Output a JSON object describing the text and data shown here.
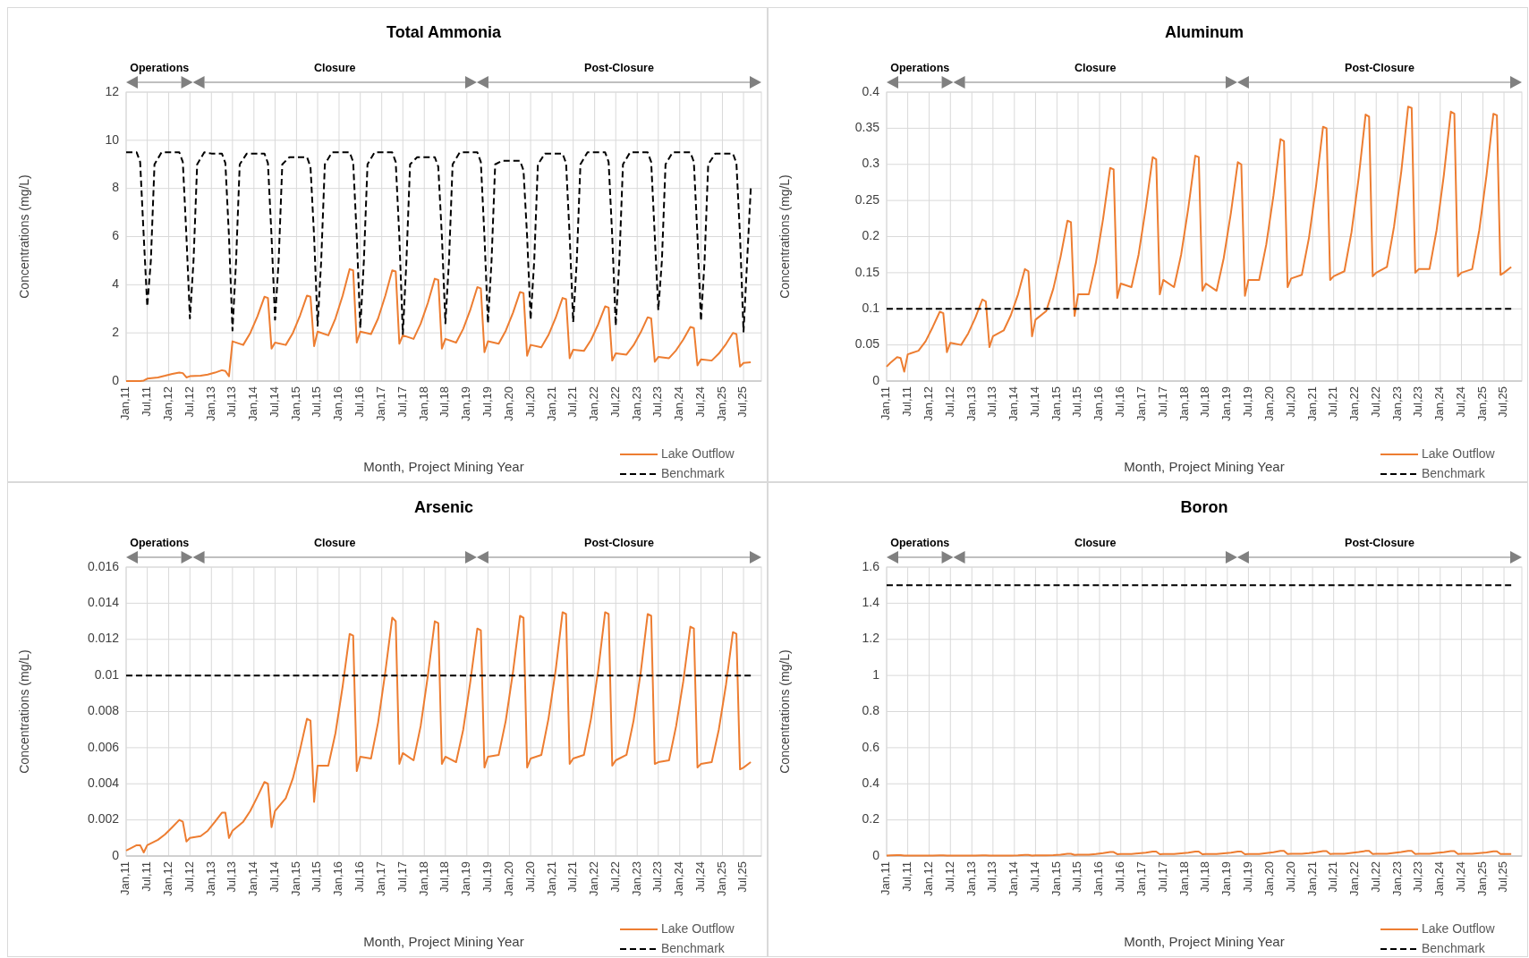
{
  "chart_data": [
    {
      "type": "line",
      "title": "Total Ammonia",
      "xlabel": "Month, Project Mining Year",
      "ylabel": "Concentrations (mg/L)",
      "grid": true,
      "legend": "bottom right",
      "xlim": [
        "2011-01",
        "2025-12"
      ],
      "ylim": [
        0,
        12
      ],
      "yticks": [
        0,
        2,
        4,
        6,
        8,
        10,
        12
      ],
      "xticks": [
        {
          "value": "2011-01",
          "label": "Jan,11"
        },
        {
          "value": "2011-07",
          "label": "Jul,11"
        },
        {
          "value": "2012-01",
          "label": "Jan,12"
        },
        {
          "value": "2012-07",
          "label": "Jul,12"
        },
        {
          "value": "2013-01",
          "label": "Jan,13"
        },
        {
          "value": "2013-07",
          "label": "Jul,13"
        },
        {
          "value": "2014-01",
          "label": "Jan,14"
        },
        {
          "value": "2014-07",
          "label": "Jul,14"
        },
        {
          "value": "2015-01",
          "label": "Jan,15"
        },
        {
          "value": "2015-07",
          "label": "Jul,15"
        },
        {
          "value": "2016-01",
          "label": "Jan,16"
        },
        {
          "value": "2016-07",
          "label": "Jul,16"
        },
        {
          "value": "2017-01",
          "label": "Jan,17"
        },
        {
          "value": "2017-07",
          "label": "Jul,17"
        },
        {
          "value": "2018-01",
          "label": "Jan,18"
        },
        {
          "value": "2018-07",
          "label": "Jul,18"
        },
        {
          "value": "2019-01",
          "label": "Jan,19"
        },
        {
          "value": "2019-07",
          "label": "Jul,19"
        },
        {
          "value": "2020-01",
          "label": "Jan,20"
        },
        {
          "value": "2020-07",
          "label": "Jul,20"
        },
        {
          "value": "2021-01",
          "label": "Jan,21"
        },
        {
          "value": "2021-07",
          "label": "Jul,21"
        },
        {
          "value": "2022-01",
          "label": "Jan,22"
        },
        {
          "value": "2022-07",
          "label": "Jul,22"
        },
        {
          "value": "2023-01",
          "label": "Jan,23"
        },
        {
          "value": "2023-07",
          "label": "Jul,23"
        },
        {
          "value": "2024-01",
          "label": "Jan,24"
        },
        {
          "value": "2024-07",
          "label": "Jul,24"
        },
        {
          "value": "2025-01",
          "label": "Jan,25"
        },
        {
          "value": "2025-07",
          "label": "Jul,25"
        }
      ],
      "annotations": [
        "Operations",
        "Closure",
        "Post-Closure"
      ],
      "x": [
        "2011-01",
        "2011-02",
        "2011-04",
        "2011-05",
        "2011-06",
        "2011-07",
        "2011-10",
        "2011-12",
        "2012-02",
        "2012-04",
        "2012-05",
        "2012-06",
        "2012-07",
        "2012-10",
        "2012-12",
        "2013-02",
        "2013-04",
        "2013-05",
        "2013-06",
        "2013-07",
        "2013-10",
        "2013-12",
        "2014-02",
        "2014-04",
        "2014-05",
        "2014-06",
        "2014-07",
        "2014-10",
        "2014-12",
        "2015-02",
        "2015-04",
        "2015-05",
        "2015-06",
        "2015-07",
        "2015-10",
        "2015-12",
        "2016-02",
        "2016-04",
        "2016-05",
        "2016-06",
        "2016-07",
        "2016-10",
        "2016-12",
        "2017-02",
        "2017-04",
        "2017-05",
        "2017-06",
        "2017-07",
        "2017-10",
        "2017-12",
        "2018-02",
        "2018-04",
        "2018-05",
        "2018-06",
        "2018-07",
        "2018-10",
        "2018-12",
        "2019-02",
        "2019-04",
        "2019-05",
        "2019-06",
        "2019-07",
        "2019-10",
        "2019-12",
        "2020-02",
        "2020-04",
        "2020-05",
        "2020-06",
        "2020-07",
        "2020-10",
        "2020-12",
        "2021-02",
        "2021-04",
        "2021-05",
        "2021-06",
        "2021-07",
        "2021-10",
        "2021-12",
        "2022-02",
        "2022-04",
        "2022-05",
        "2022-06",
        "2022-07",
        "2022-10",
        "2022-12",
        "2023-02",
        "2023-04",
        "2023-05",
        "2023-06",
        "2023-07",
        "2023-10",
        "2023-12",
        "2024-02",
        "2024-04",
        "2024-05",
        "2024-06",
        "2024-07",
        "2024-10",
        "2024-12",
        "2025-02",
        "2025-04",
        "2025-05",
        "2025-06",
        "2025-07",
        "2025-09"
      ],
      "series": [
        {
          "name": "Lake Outflow",
          "color": "#ed7d31",
          "line_style": "solid",
          "values": [
            0,
            0,
            0,
            0,
            0.02,
            0.1,
            0.15,
            0.22,
            0.3,
            0.35,
            0.33,
            0.15,
            0.2,
            0.22,
            0.27,
            0.35,
            0.45,
            0.42,
            0.2,
            1.65,
            1.5,
            2.0,
            2.7,
            3.5,
            3.45,
            1.35,
            1.6,
            1.5,
            2.0,
            2.73,
            3.55,
            3.5,
            1.45,
            2.05,
            1.9,
            2.6,
            3.55,
            4.65,
            4.6,
            1.6,
            2.05,
            1.95,
            2.6,
            3.55,
            4.6,
            4.55,
            1.55,
            1.9,
            1.75,
            2.38,
            3.25,
            4.25,
            4.2,
            1.35,
            1.75,
            1.6,
            2.17,
            2.98,
            3.9,
            3.85,
            1.2,
            1.65,
            1.55,
            2.09,
            2.84,
            3.7,
            3.65,
            1.05,
            1.5,
            1.4,
            1.91,
            2.63,
            3.45,
            3.4,
            0.95,
            1.3,
            1.25,
            1.71,
            2.36,
            3.1,
            3.05,
            0.85,
            1.15,
            1.1,
            1.49,
            2.03,
            2.65,
            2.6,
            0.8,
            1.0,
            0.95,
            1.28,
            1.73,
            2.25,
            2.2,
            0.65,
            0.9,
            0.85,
            1.14,
            1.54,
            2.0,
            1.95,
            0.6,
            0.75,
            0.78
          ]
        },
        {
          "name": "Benchmark",
          "color": "#000000",
          "line_style": "dashed",
          "x": [
            "2011-01",
            "2011-04",
            "2011-05",
            "2011-06",
            "2011-07",
            "2011-08",
            "2011-09",
            "2011-11",
            "2012-01",
            "2012-04",
            "2012-05",
            "2012-06",
            "2012-07",
            "2012-08",
            "2012-09",
            "2012-11",
            "2013-01",
            "2013-04",
            "2013-05",
            "2013-06",
            "2013-07",
            "2013-08",
            "2013-09",
            "2013-11",
            "2014-01",
            "2014-04",
            "2014-05",
            "2014-06",
            "2014-07",
            "2014-08",
            "2014-09",
            "2014-11",
            "2015-01",
            "2015-04",
            "2015-05",
            "2015-06",
            "2015-07",
            "2015-08",
            "2015-09",
            "2015-11",
            "2016-01",
            "2016-04",
            "2016-05",
            "2016-06",
            "2016-07",
            "2016-08",
            "2016-09",
            "2016-11",
            "2017-01",
            "2017-04",
            "2017-05",
            "2017-06",
            "2017-07",
            "2017-08",
            "2017-09",
            "2017-11",
            "2018-01",
            "2018-04",
            "2018-05",
            "2018-06",
            "2018-07",
            "2018-08",
            "2018-09",
            "2018-11",
            "2019-01",
            "2019-04",
            "2019-05",
            "2019-06",
            "2019-07",
            "2019-08",
            "2019-09",
            "2019-11",
            "2020-01",
            "2020-04",
            "2020-05",
            "2020-06",
            "2020-07",
            "2020-08",
            "2020-09",
            "2020-11",
            "2021-01",
            "2021-04",
            "2021-05",
            "2021-06",
            "2021-07",
            "2021-08",
            "2021-09",
            "2021-11",
            "2022-01",
            "2022-04",
            "2022-05",
            "2022-06",
            "2022-07",
            "2022-08",
            "2022-09",
            "2022-11",
            "2023-01",
            "2023-04",
            "2023-05",
            "2023-06",
            "2023-07",
            "2023-08",
            "2023-09",
            "2023-11",
            "2024-01",
            "2024-04",
            "2024-05",
            "2024-06",
            "2024-07",
            "2024-08",
            "2024-09",
            "2024-11",
            "2025-01",
            "2025-04",
            "2025-05",
            "2025-06",
            "2025-07",
            "2025-08",
            "2025-09"
          ],
          "values": [
            9.5,
            9.5,
            9.1,
            6,
            3.1,
            5,
            9,
            9.5,
            9.5,
            9.5,
            9.1,
            6,
            2.6,
            5,
            9,
            9.5,
            9.45,
            9.45,
            9.05,
            6,
            2.1,
            5,
            9,
            9.45,
            9.45,
            9.45,
            9.05,
            6,
            2.55,
            5,
            9,
            9.3,
            9.3,
            9.3,
            8.9,
            6,
            2.3,
            5,
            9,
            9.5,
            9.5,
            9.5,
            9.1,
            6,
            2.2,
            5,
            9,
            9.5,
            9.5,
            9.5,
            9.1,
            6,
            1.95,
            5,
            9,
            9.3,
            9.3,
            9.3,
            8.9,
            6,
            2.4,
            5,
            9,
            9.5,
            9.5,
            9.5,
            9.1,
            6,
            2.4,
            5,
            9,
            9.15,
            9.15,
            9.15,
            8.75,
            6,
            2.55,
            5,
            9,
            9.45,
            9.45,
            9.45,
            9.05,
            6,
            2.45,
            5,
            9,
            9.5,
            9.5,
            9.5,
            9.1,
            6,
            2.3,
            5,
            9,
            9.5,
            9.5,
            9.5,
            9.1,
            6,
            2.95,
            5,
            9,
            9.5,
            9.5,
            9.5,
            9.1,
            6,
            2.5,
            5,
            9,
            9.45,
            9.45,
            9.45,
            9.05,
            6,
            2.05,
            5,
            8
          ]
        }
      ]
    },
    {
      "type": "line",
      "title": "Aluminum",
      "xlabel": "Month, Project Mining Year",
      "ylabel": "Concentrations (mg/L)",
      "grid": true,
      "legend": "bottom right",
      "xlim": [
        "2011-01",
        "2025-12"
      ],
      "ylim": [
        0,
        0.4
      ],
      "yticks": [
        0,
        0.05,
        0.1,
        0.15,
        0.2,
        0.25,
        0.3,
        0.35,
        0.4
      ],
      "xticks": [
        {
          "value": "2011-01",
          "label": "Jan,11"
        },
        {
          "value": "2011-07",
          "label": "Jul,11"
        },
        {
          "value": "2012-01",
          "label": "Jan,12"
        },
        {
          "value": "2012-07",
          "label": "Jul,12"
        },
        {
          "value": "2013-01",
          "label": "Jan,13"
        },
        {
          "value": "2013-07",
          "label": "Jul,13"
        },
        {
          "value": "2014-01",
          "label": "Jan,14"
        },
        {
          "value": "2014-07",
          "label": "Jul,14"
        },
        {
          "value": "2015-01",
          "label": "Jan,15"
        },
        {
          "value": "2015-07",
          "label": "Jul,15"
        },
        {
          "value": "2016-01",
          "label": "Jan,16"
        },
        {
          "value": "2016-07",
          "label": "Jul,16"
        },
        {
          "value": "2017-01",
          "label": "Jan,17"
        },
        {
          "value": "2017-07",
          "label": "Jul,17"
        },
        {
          "value": "2018-01",
          "label": "Jan,18"
        },
        {
          "value": "2018-07",
          "label": "Jul,18"
        },
        {
          "value": "2019-01",
          "label": "Jan,19"
        },
        {
          "value": "2019-07",
          "label": "Jul,19"
        },
        {
          "value": "2020-01",
          "label": "Jan,20"
        },
        {
          "value": "2020-07",
          "label": "Jul,20"
        },
        {
          "value": "2021-01",
          "label": "Jan,21"
        },
        {
          "value": "2021-07",
          "label": "Jul,21"
        },
        {
          "value": "2022-01",
          "label": "Jan,22"
        },
        {
          "value": "2022-07",
          "label": "Jul,22"
        },
        {
          "value": "2023-01",
          "label": "Jan,23"
        },
        {
          "value": "2023-07",
          "label": "Jul,23"
        },
        {
          "value": "2024-01",
          "label": "Jan,24"
        },
        {
          "value": "2024-07",
          "label": "Jul,24"
        },
        {
          "value": "2025-01",
          "label": "Jan,25"
        },
        {
          "value": "2025-07",
          "label": "Jul,25"
        }
      ],
      "annotations": [
        "Operations",
        "Closure",
        "Post-Closure"
      ],
      "x": [
        "2011-01",
        "2011-02",
        "2011-04",
        "2011-05",
        "2011-06",
        "2011-07",
        "2011-10",
        "2011-12",
        "2012-02",
        "2012-04",
        "2012-05",
        "2012-06",
        "2012-07",
        "2012-10",
        "2012-12",
        "2013-02",
        "2013-04",
        "2013-05",
        "2013-06",
        "2013-07",
        "2013-10",
        "2013-12",
        "2014-02",
        "2014-04",
        "2014-05",
        "2014-06",
        "2014-07",
        "2014-10",
        "2014-12",
        "2015-02",
        "2015-04",
        "2015-05",
        "2015-06",
        "2015-07",
        "2015-10",
        "2015-12",
        "2016-02",
        "2016-04",
        "2016-05",
        "2016-06",
        "2016-07",
        "2016-10",
        "2016-12",
        "2017-02",
        "2017-04",
        "2017-05",
        "2017-06",
        "2017-07",
        "2017-10",
        "2017-12",
        "2018-02",
        "2018-04",
        "2018-05",
        "2018-06",
        "2018-07",
        "2018-10",
        "2018-12",
        "2019-02",
        "2019-04",
        "2019-05",
        "2019-06",
        "2019-07",
        "2019-10",
        "2019-12",
        "2020-02",
        "2020-04",
        "2020-05",
        "2020-06",
        "2020-07",
        "2020-10",
        "2020-12",
        "2021-02",
        "2021-04",
        "2021-05",
        "2021-06",
        "2021-07",
        "2021-10",
        "2021-12",
        "2022-02",
        "2022-04",
        "2022-05",
        "2022-06",
        "2022-07",
        "2022-10",
        "2022-12",
        "2023-02",
        "2023-04",
        "2023-05",
        "2023-06",
        "2023-07",
        "2023-10",
        "2023-12",
        "2024-02",
        "2024-04",
        "2024-05",
        "2024-06",
        "2024-07",
        "2024-10",
        "2024-12",
        "2025-02",
        "2025-04",
        "2025-05",
        "2025-06",
        "2025-07",
        "2025-09"
      ],
      "series": [
        {
          "name": "Lake Outflow",
          "color": "#ed7d31",
          "line_style": "solid",
          "values": [
            0.02,
            0.025,
            0.033,
            0.032,
            0.013,
            0.037,
            0.042,
            0.055,
            0.075,
            0.096,
            0.094,
            0.04,
            0.053,
            0.05,
            0.066,
            0.088,
            0.113,
            0.11,
            0.047,
            0.062,
            0.07,
            0.091,
            0.12,
            0.155,
            0.152,
            0.062,
            0.085,
            0.097,
            0.128,
            0.172,
            0.222,
            0.22,
            0.09,
            0.12,
            0.12,
            0.164,
            0.225,
            0.295,
            0.293,
            0.115,
            0.135,
            0.13,
            0.175,
            0.24,
            0.31,
            0.307,
            0.12,
            0.14,
            0.13,
            0.175,
            0.24,
            0.312,
            0.31,
            0.125,
            0.135,
            0.125,
            0.17,
            0.233,
            0.303,
            0.3,
            0.118,
            0.14,
            0.14,
            0.189,
            0.257,
            0.335,
            0.332,
            0.13,
            0.142,
            0.147,
            0.198,
            0.271,
            0.352,
            0.35,
            0.14,
            0.145,
            0.152,
            0.206,
            0.282,
            0.369,
            0.366,
            0.145,
            0.15,
            0.158,
            0.214,
            0.29,
            0.38,
            0.378,
            0.15,
            0.155,
            0.155,
            0.209,
            0.285,
            0.373,
            0.37,
            0.145,
            0.15,
            0.155,
            0.209,
            0.285,
            0.37,
            0.368,
            0.147,
            0.15,
            0.158
          ]
        },
        {
          "name": "Benchmark",
          "color": "#000000",
          "line_style": "dashed",
          "x": [
            "2011-01",
            "2025-09"
          ],
          "values": [
            0.1,
            0.1
          ]
        }
      ]
    },
    {
      "type": "line",
      "title": "Arsenic",
      "xlabel": "Month, Project Mining Year",
      "ylabel": "Concentrations (mg/L)",
      "grid": true,
      "legend": "bottom right",
      "xlim": [
        "2011-01",
        "2025-12"
      ],
      "ylim": [
        0,
        0.016
      ],
      "yticks": [
        0,
        0.002,
        0.004,
        0.006,
        0.008,
        0.01,
        0.012,
        0.014,
        0.016
      ],
      "xticks": [
        {
          "value": "2011-01",
          "label": "Jan,11"
        },
        {
          "value": "2011-07",
          "label": "Jul,11"
        },
        {
          "value": "2012-01",
          "label": "Jan,12"
        },
        {
          "value": "2012-07",
          "label": "Jul,12"
        },
        {
          "value": "2013-01",
          "label": "Jan,13"
        },
        {
          "value": "2013-07",
          "label": "Jul,13"
        },
        {
          "value": "2014-01",
          "label": "Jan,14"
        },
        {
          "value": "2014-07",
          "label": "Jul,14"
        },
        {
          "value": "2015-01",
          "label": "Jan,15"
        },
        {
          "value": "2015-07",
          "label": "Jul,15"
        },
        {
          "value": "2016-01",
          "label": "Jan,16"
        },
        {
          "value": "2016-07",
          "label": "Jul,16"
        },
        {
          "value": "2017-01",
          "label": "Jan,17"
        },
        {
          "value": "2017-07",
          "label": "Jul,17"
        },
        {
          "value": "2018-01",
          "label": "Jan,18"
        },
        {
          "value": "2018-07",
          "label": "Jul,18"
        },
        {
          "value": "2019-01",
          "label": "Jan,19"
        },
        {
          "value": "2019-07",
          "label": "Jul,19"
        },
        {
          "value": "2020-01",
          "label": "Jan,20"
        },
        {
          "value": "2020-07",
          "label": "Jul,20"
        },
        {
          "value": "2021-01",
          "label": "Jan,21"
        },
        {
          "value": "2021-07",
          "label": "Jul,21"
        },
        {
          "value": "2022-01",
          "label": "Jan,22"
        },
        {
          "value": "2022-07",
          "label": "Jul,22"
        },
        {
          "value": "2023-01",
          "label": "Jan,23"
        },
        {
          "value": "2023-07",
          "label": "Jul,23"
        },
        {
          "value": "2024-01",
          "label": "Jan,24"
        },
        {
          "value": "2024-07",
          "label": "Jul,24"
        },
        {
          "value": "2025-01",
          "label": "Jan,25"
        },
        {
          "value": "2025-07",
          "label": "Jul,25"
        }
      ],
      "annotations": [
        "Operations",
        "Closure",
        "Post-Closure"
      ],
      "x": [
        "2011-01",
        "2011-02",
        "2011-04",
        "2011-05",
        "2011-06",
        "2011-07",
        "2011-10",
        "2011-12",
        "2012-02",
        "2012-04",
        "2012-05",
        "2012-06",
        "2012-07",
        "2012-10",
        "2012-12",
        "2013-02",
        "2013-04",
        "2013-05",
        "2013-06",
        "2013-07",
        "2013-10",
        "2013-12",
        "2014-02",
        "2014-04",
        "2014-05",
        "2014-06",
        "2014-07",
        "2014-10",
        "2014-12",
        "2015-02",
        "2015-04",
        "2015-05",
        "2015-06",
        "2015-07",
        "2015-10",
        "2015-12",
        "2016-02",
        "2016-04",
        "2016-05",
        "2016-06",
        "2016-07",
        "2016-10",
        "2016-12",
        "2017-02",
        "2017-04",
        "2017-05",
        "2017-06",
        "2017-07",
        "2017-10",
        "2017-12",
        "2018-02",
        "2018-04",
        "2018-05",
        "2018-06",
        "2018-07",
        "2018-10",
        "2018-12",
        "2019-02",
        "2019-04",
        "2019-05",
        "2019-06",
        "2019-07",
        "2019-10",
        "2019-12",
        "2020-02",
        "2020-04",
        "2020-05",
        "2020-06",
        "2020-07",
        "2020-10",
        "2020-12",
        "2021-02",
        "2021-04",
        "2021-05",
        "2021-06",
        "2021-07",
        "2021-10",
        "2021-12",
        "2022-02",
        "2022-04",
        "2022-05",
        "2022-06",
        "2022-07",
        "2022-10",
        "2022-12",
        "2023-02",
        "2023-04",
        "2023-05",
        "2023-06",
        "2023-07",
        "2023-10",
        "2023-12",
        "2024-02",
        "2024-04",
        "2024-05",
        "2024-06",
        "2024-07",
        "2024-10",
        "2024-12",
        "2025-02",
        "2025-04",
        "2025-05",
        "2025-06",
        "2025-07",
        "2025-09"
      ],
      "series": [
        {
          "name": "Lake Outflow",
          "color": "#ed7d31",
          "line_style": "solid",
          "values": [
            0.0003,
            0.0004,
            0.0006,
            0.0006,
            0.0002,
            0.0006,
            0.0009,
            0.0012,
            0.0016,
            0.002,
            0.0019,
            0.0008,
            0.001,
            0.0011,
            0.0014,
            0.0019,
            0.0024,
            0.0024,
            0.001,
            0.0014,
            0.0019,
            0.0025,
            0.0033,
            0.0041,
            0.004,
            0.0016,
            0.0025,
            0.0032,
            0.0043,
            0.0059,
            0.0076,
            0.0075,
            0.003,
            0.005,
            0.005,
            0.0068,
            0.0094,
            0.0123,
            0.0122,
            0.0047,
            0.0055,
            0.0054,
            0.0074,
            0.0102,
            0.0132,
            0.013,
            0.0051,
            0.0057,
            0.0053,
            0.0072,
            0.01,
            0.013,
            0.0129,
            0.0051,
            0.0055,
            0.0052,
            0.007,
            0.0097,
            0.0126,
            0.0125,
            0.0049,
            0.0055,
            0.0056,
            0.0075,
            0.0102,
            0.0133,
            0.0132,
            0.0049,
            0.0054,
            0.0056,
            0.0076,
            0.0103,
            0.0135,
            0.0134,
            0.0051,
            0.0054,
            0.0056,
            0.0076,
            0.0103,
            0.0135,
            0.0134,
            0.005,
            0.0053,
            0.0056,
            0.0075,
            0.0102,
            0.0134,
            0.0133,
            0.0051,
            0.0052,
            0.0053,
            0.0072,
            0.0097,
            0.0127,
            0.0126,
            0.0049,
            0.0051,
            0.0052,
            0.007,
            0.0095,
            0.0124,
            0.0123,
            0.0048,
            0.0049,
            0.0052
          ]
        },
        {
          "name": "Benchmark",
          "color": "#000000",
          "line_style": "dashed",
          "x": [
            "2011-01",
            "2025-09"
          ],
          "values": [
            0.01,
            0.01
          ]
        }
      ]
    },
    {
      "type": "line",
      "title": "Boron",
      "xlabel": "Month, Project Mining Year",
      "ylabel": "Concentrations (mg/L)",
      "grid": true,
      "legend": "bottom right",
      "xlim": [
        "2011-01",
        "2025-12"
      ],
      "ylim": [
        0,
        1.6
      ],
      "yticks": [
        0,
        0.2,
        0.4,
        0.6,
        0.8,
        1,
        1.2,
        1.4,
        1.6
      ],
      "xticks": [
        {
          "value": "2011-01",
          "label": "Jan,11"
        },
        {
          "value": "2011-07",
          "label": "Jul,11"
        },
        {
          "value": "2012-01",
          "label": "Jan,12"
        },
        {
          "value": "2012-07",
          "label": "Jul,12"
        },
        {
          "value": "2013-01",
          "label": "Jan,13"
        },
        {
          "value": "2013-07",
          "label": "Jul,13"
        },
        {
          "value": "2014-01",
          "label": "Jan,14"
        },
        {
          "value": "2014-07",
          "label": "Jul,14"
        },
        {
          "value": "2015-01",
          "label": "Jan,15"
        },
        {
          "value": "2015-07",
          "label": "Jul,15"
        },
        {
          "value": "2016-01",
          "label": "Jan,16"
        },
        {
          "value": "2016-07",
          "label": "Jul,16"
        },
        {
          "value": "2017-01",
          "label": "Jan,17"
        },
        {
          "value": "2017-07",
          "label": "Jul,17"
        },
        {
          "value": "2018-01",
          "label": "Jan,18"
        },
        {
          "value": "2018-07",
          "label": "Jul,18"
        },
        {
          "value": "2019-01",
          "label": "Jan,19"
        },
        {
          "value": "2019-07",
          "label": "Jul,19"
        },
        {
          "value": "2020-01",
          "label": "Jan,20"
        },
        {
          "value": "2020-07",
          "label": "Jul,20"
        },
        {
          "value": "2021-01",
          "label": "Jan,21"
        },
        {
          "value": "2021-07",
          "label": "Jul,21"
        },
        {
          "value": "2022-01",
          "label": "Jan,22"
        },
        {
          "value": "2022-07",
          "label": "Jul,22"
        },
        {
          "value": "2023-01",
          "label": "Jan,23"
        },
        {
          "value": "2023-07",
          "label": "Jul,23"
        },
        {
          "value": "2024-01",
          "label": "Jan,24"
        },
        {
          "value": "2024-07",
          "label": "Jul,24"
        },
        {
          "value": "2025-01",
          "label": "Jan,25"
        },
        {
          "value": "2025-07",
          "label": "Jul,25"
        }
      ],
      "annotations": [
        "Operations",
        "Closure",
        "Post-Closure"
      ],
      "x": [
        "2011-01",
        "2011-02",
        "2011-04",
        "2011-05",
        "2011-06",
        "2011-07",
        "2011-10",
        "2011-12",
        "2012-02",
        "2012-04",
        "2012-05",
        "2012-06",
        "2012-07",
        "2012-10",
        "2012-12",
        "2013-02",
        "2013-04",
        "2013-05",
        "2013-06",
        "2013-07",
        "2013-10",
        "2013-12",
        "2014-02",
        "2014-04",
        "2014-05",
        "2014-06",
        "2014-07",
        "2014-10",
        "2014-12",
        "2015-02",
        "2015-04",
        "2015-05",
        "2015-06",
        "2015-07",
        "2015-10",
        "2015-12",
        "2016-02",
        "2016-04",
        "2016-05",
        "2016-06",
        "2016-07",
        "2016-10",
        "2016-12",
        "2017-02",
        "2017-04",
        "2017-05",
        "2017-06",
        "2017-07",
        "2017-10",
        "2017-12",
        "2018-02",
        "2018-04",
        "2018-05",
        "2018-06",
        "2018-07",
        "2018-10",
        "2018-12",
        "2019-02",
        "2019-04",
        "2019-05",
        "2019-06",
        "2019-07",
        "2019-10",
        "2019-12",
        "2020-02",
        "2020-04",
        "2020-05",
        "2020-06",
        "2020-07",
        "2020-10",
        "2020-12",
        "2021-02",
        "2021-04",
        "2021-05",
        "2021-06",
        "2021-07",
        "2021-10",
        "2021-12",
        "2022-02",
        "2022-04",
        "2022-05",
        "2022-06",
        "2022-07",
        "2022-10",
        "2022-12",
        "2023-02",
        "2023-04",
        "2023-05",
        "2023-06",
        "2023-07",
        "2023-10",
        "2023-12",
        "2024-02",
        "2024-04",
        "2024-05",
        "2024-06",
        "2024-07",
        "2024-10",
        "2024-12",
        "2025-02",
        "2025-04",
        "2025-05",
        "2025-06",
        "2025-07",
        "2025-09"
      ],
      "series": [
        {
          "name": "Lake Outflow",
          "color": "#ed7d31",
          "line_style": "solid",
          "values": [
            0.003,
            0.004,
            0.005,
            0.005,
            0.002,
            0.002,
            0.002,
            0.002,
            0.003,
            0.004,
            0.004,
            0.002,
            0.002,
            0.002,
            0.002,
            0.003,
            0.004,
            0.004,
            0.002,
            0.002,
            0.002,
            0.003,
            0.004,
            0.006,
            0.006,
            0.003,
            0.004,
            0.004,
            0.005,
            0.008,
            0.012,
            0.012,
            0.006,
            0.008,
            0.008,
            0.011,
            0.016,
            0.022,
            0.022,
            0.01,
            0.011,
            0.011,
            0.015,
            0.019,
            0.025,
            0.025,
            0.01,
            0.011,
            0.011,
            0.015,
            0.019,
            0.025,
            0.025,
            0.01,
            0.011,
            0.011,
            0.015,
            0.019,
            0.025,
            0.025,
            0.01,
            0.011,
            0.011,
            0.016,
            0.021,
            0.028,
            0.028,
            0.011,
            0.012,
            0.012,
            0.016,
            0.021,
            0.027,
            0.027,
            0.011,
            0.012,
            0.012,
            0.017,
            0.022,
            0.028,
            0.028,
            0.011,
            0.012,
            0.012,
            0.017,
            0.022,
            0.028,
            0.028,
            0.011,
            0.012,
            0.012,
            0.017,
            0.021,
            0.027,
            0.027,
            0.011,
            0.012,
            0.012,
            0.016,
            0.02,
            0.026,
            0.026,
            0.011,
            0.011,
            0.011
          ]
        },
        {
          "name": "Benchmark",
          "color": "#000000",
          "line_style": "dashed",
          "x": [
            "2011-01",
            "2025-09"
          ],
          "values": [
            1.5,
            1.5
          ]
        }
      ]
    }
  ]
}
